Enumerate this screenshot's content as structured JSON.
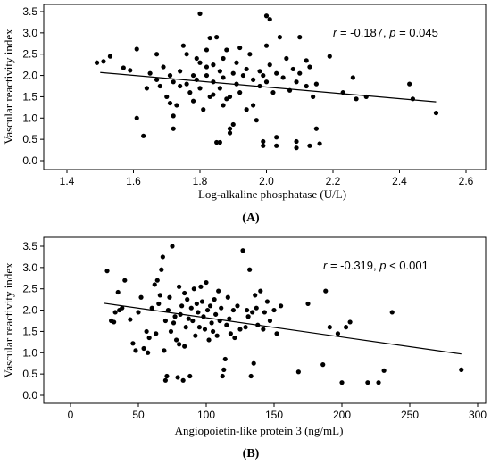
{
  "chart_data": [
    {
      "type": "scatter",
      "panel_label": "(A)",
      "xlabel": "Log-alkaline phosphatase (U/L)",
      "ylabel": "Vascular reactivity index",
      "xlim": [
        1.4,
        2.6
      ],
      "ylim": [
        0.0,
        3.5
      ],
      "xticks": [
        "1.4",
        "1.6",
        "1.8",
        "2.0",
        "2.2",
        "2.4",
        "2.6"
      ],
      "yticks": [
        "0.0",
        "0.5",
        "1.0",
        "1.5",
        "2.0",
        "2.5",
        "3.0",
        "3.5"
      ],
      "annotation": {
        "r_label": "r",
        "r_text": " = -0.187, ",
        "p_label": "p",
        "p_text": " = 0.045"
      },
      "fit_line": {
        "x": [
          1.5,
          2.51
        ],
        "y": [
          2.07,
          1.38
        ]
      },
      "points": [
        [
          1.49,
          2.3
        ],
        [
          1.51,
          2.33
        ],
        [
          1.53,
          2.45
        ],
        [
          1.57,
          2.18
        ],
        [
          1.59,
          2.12
        ],
        [
          1.61,
          1.0
        ],
        [
          1.61,
          2.62
        ],
        [
          1.63,
          0.58
        ],
        [
          1.64,
          1.7
        ],
        [
          1.65,
          2.05
        ],
        [
          1.67,
          2.5
        ],
        [
          1.67,
          1.9
        ],
        [
          1.68,
          1.75
        ],
        [
          1.69,
          2.2
        ],
        [
          1.7,
          1.5
        ],
        [
          1.71,
          2.0
        ],
        [
          1.71,
          1.35
        ],
        [
          1.72,
          1.85
        ],
        [
          1.72,
          1.05
        ],
        [
          1.72,
          0.75
        ],
        [
          1.73,
          1.3
        ],
        [
          1.74,
          1.75
        ],
        [
          1.74,
          2.1
        ],
        [
          1.75,
          2.7
        ],
        [
          1.76,
          1.8
        ],
        [
          1.76,
          2.5
        ],
        [
          1.77,
          1.6
        ],
        [
          1.78,
          2.0
        ],
        [
          1.78,
          1.4
        ],
        [
          1.79,
          2.4
        ],
        [
          1.79,
          1.9
        ],
        [
          1.8,
          2.3
        ],
        [
          1.8,
          1.7
        ],
        [
          1.8,
          3.45
        ],
        [
          1.81,
          1.2
        ],
        [
          1.82,
          2.2
        ],
        [
          1.82,
          2.0
        ],
        [
          1.82,
          2.6
        ],
        [
          1.83,
          1.5
        ],
        [
          1.83,
          2.88
        ],
        [
          1.84,
          1.85
        ],
        [
          1.84,
          2.25
        ],
        [
          1.84,
          1.55
        ],
        [
          1.85,
          0.43
        ],
        [
          1.85,
          2.9
        ],
        [
          1.86,
          0.43
        ],
        [
          1.86,
          1.7
        ],
        [
          1.86,
          2.1
        ],
        [
          1.87,
          2.4
        ],
        [
          1.87,
          1.3
        ],
        [
          1.87,
          1.95
        ],
        [
          1.88,
          2.6
        ],
        [
          1.88,
          1.45
        ],
        [
          1.89,
          0.65
        ],
        [
          1.89,
          1.5
        ],
        [
          1.89,
          0.75
        ],
        [
          1.9,
          0.85
        ],
        [
          1.9,
          2.05
        ],
        [
          1.91,
          1.8
        ],
        [
          1.91,
          2.3
        ],
        [
          1.92,
          2.65
        ],
        [
          1.92,
          1.6
        ],
        [
          1.93,
          2.0
        ],
        [
          1.94,
          1.2
        ],
        [
          1.94,
          2.15
        ],
        [
          1.95,
          2.5
        ],
        [
          1.96,
          1.9
        ],
        [
          1.96,
          1.3
        ],
        [
          1.97,
          0.95
        ],
        [
          1.98,
          1.75
        ],
        [
          1.98,
          2.1
        ],
        [
          1.99,
          0.45
        ],
        [
          1.99,
          0.35
        ],
        [
          1.99,
          2.0
        ],
        [
          2.0,
          3.4
        ],
        [
          2.0,
          1.85
        ],
        [
          2.0,
          2.7
        ],
        [
          2.01,
          3.32
        ],
        [
          2.01,
          2.25
        ],
        [
          2.02,
          1.6
        ],
        [
          2.03,
          0.55
        ],
        [
          2.03,
          0.35
        ],
        [
          2.03,
          2.05
        ],
        [
          2.04,
          2.9
        ],
        [
          2.05,
          1.95
        ],
        [
          2.06,
          2.4
        ],
        [
          2.07,
          1.65
        ],
        [
          2.08,
          2.15
        ],
        [
          2.09,
          0.45
        ],
        [
          2.09,
          0.3
        ],
        [
          2.09,
          1.85
        ],
        [
          2.1,
          2.9
        ],
        [
          2.1,
          2.05
        ],
        [
          2.12,
          1.75
        ],
        [
          2.12,
          2.35
        ],
        [
          2.13,
          0.35
        ],
        [
          2.13,
          2.2
        ],
        [
          2.14,
          1.5
        ],
        [
          2.15,
          0.75
        ],
        [
          2.15,
          1.8
        ],
        [
          2.16,
          0.4
        ],
        [
          2.19,
          2.45
        ],
        [
          2.23,
          1.6
        ],
        [
          2.26,
          1.95
        ],
        [
          2.27,
          1.45
        ],
        [
          2.3,
          1.5
        ],
        [
          2.43,
          1.8
        ],
        [
          2.44,
          1.45
        ],
        [
          2.51,
          1.12
        ]
      ]
    },
    {
      "type": "scatter",
      "panel_label": "(B)",
      "xlabel": "Angiopoietin-like protein 3 (ng/mL)",
      "ylabel": "Vascular reactivity index",
      "xlim": [
        0,
        300
      ],
      "ylim": [
        0.0,
        3.5
      ],
      "xticks": [
        "0",
        "50",
        "100",
        "150",
        "200",
        "250",
        "300"
      ],
      "yticks": [
        "0.0",
        "0.5",
        "1.0",
        "1.5",
        "2.0",
        "2.5",
        "3.0",
        "3.5"
      ],
      "annotation": {
        "r_label": "r",
        "r_text": " = -0.319, ",
        "p_label": "p",
        "p_text": " < 0.001"
      },
      "fit_line": {
        "x": [
          25,
          288
        ],
        "y": [
          2.16,
          0.97
        ]
      },
      "points": [
        [
          27,
          2.92
        ],
        [
          30,
          1.75
        ],
        [
          32,
          1.72
        ],
        [
          33,
          1.95
        ],
        [
          35,
          2.42
        ],
        [
          36,
          2.0
        ],
        [
          38,
          2.05
        ],
        [
          40,
          2.7
        ],
        [
          44,
          1.78
        ],
        [
          46,
          1.22
        ],
        [
          48,
          1.05
        ],
        [
          50,
          1.95
        ],
        [
          52,
          2.3
        ],
        [
          54,
          1.1
        ],
        [
          56,
          1.5
        ],
        [
          57,
          1.0
        ],
        [
          58,
          1.35
        ],
        [
          60,
          2.05
        ],
        [
          62,
          2.6
        ],
        [
          63,
          1.45
        ],
        [
          64,
          2.7
        ],
        [
          65,
          2.15
        ],
        [
          66,
          2.35
        ],
        [
          67,
          2.95
        ],
        [
          68,
          3.25
        ],
        [
          69,
          1.05
        ],
        [
          70,
          0.35
        ],
        [
          70,
          1.75
        ],
        [
          71,
          0.45
        ],
        [
          72,
          2.0
        ],
        [
          73,
          2.3
        ],
        [
          74,
          1.5
        ],
        [
          75,
          3.5
        ],
        [
          76,
          1.7
        ],
        [
          77,
          1.85
        ],
        [
          78,
          1.3
        ],
        [
          79,
          0.42
        ],
        [
          80,
          1.2
        ],
        [
          80,
          2.55
        ],
        [
          81,
          1.9
        ],
        [
          82,
          2.1
        ],
        [
          83,
          0.35
        ],
        [
          84,
          1.15
        ],
        [
          84,
          2.4
        ],
        [
          85,
          1.6
        ],
        [
          86,
          2.25
        ],
        [
          87,
          1.8
        ],
        [
          88,
          0.45
        ],
        [
          89,
          2.05
        ],
        [
          90,
          1.75
        ],
        [
          91,
          2.5
        ],
        [
          92,
          1.4
        ],
        [
          93,
          2.15
        ],
        [
          94,
          1.95
        ],
        [
          95,
          1.6
        ],
        [
          96,
          2.55
        ],
        [
          97,
          2.2
        ],
        [
          98,
          1.85
        ],
        [
          99,
          1.55
        ],
        [
          100,
          2.65
        ],
        [
          101,
          2.0
        ],
        [
          102,
          1.3
        ],
        [
          103,
          2.1
        ],
        [
          104,
          1.7
        ],
        [
          105,
          1.5
        ],
        [
          106,
          2.25
        ],
        [
          107,
          1.9
        ],
        [
          108,
          1.4
        ],
        [
          109,
          2.45
        ],
        [
          110,
          1.75
        ],
        [
          111,
          2.05
        ],
        [
          112,
          0.45
        ],
        [
          113,
          0.6
        ],
        [
          114,
          0.85
        ],
        [
          115,
          1.65
        ],
        [
          116,
          2.3
        ],
        [
          117,
          1.8
        ],
        [
          118,
          1.45
        ],
        [
          120,
          2.0
        ],
        [
          121,
          1.35
        ],
        [
          123,
          2.1
        ],
        [
          125,
          1.55
        ],
        [
          127,
          3.4
        ],
        [
          129,
          1.6
        ],
        [
          130,
          2.0
        ],
        [
          131,
          1.85
        ],
        [
          132,
          2.95
        ],
        [
          133,
          0.45
        ],
        [
          134,
          1.95
        ],
        [
          135,
          0.75
        ],
        [
          136,
          2.35
        ],
        [
          137,
          2.05
        ],
        [
          138,
          1.65
        ],
        [
          140,
          2.45
        ],
        [
          142,
          1.55
        ],
        [
          143,
          1.95
        ],
        [
          145,
          2.2
        ],
        [
          147,
          1.75
        ],
        [
          150,
          2.0
        ],
        [
          152,
          1.45
        ],
        [
          155,
          2.1
        ],
        [
          168,
          0.55
        ],
        [
          175,
          2.15
        ],
        [
          186,
          0.72
        ],
        [
          188,
          2.45
        ],
        [
          191,
          1.6
        ],
        [
          197,
          1.45
        ],
        [
          200,
          0.3
        ],
        [
          203,
          1.6
        ],
        [
          206,
          1.72
        ],
        [
          219,
          0.3
        ],
        [
          227,
          0.3
        ],
        [
          231,
          0.58
        ],
        [
          237,
          1.95
        ],
        [
          288,
          0.6
        ]
      ]
    }
  ]
}
